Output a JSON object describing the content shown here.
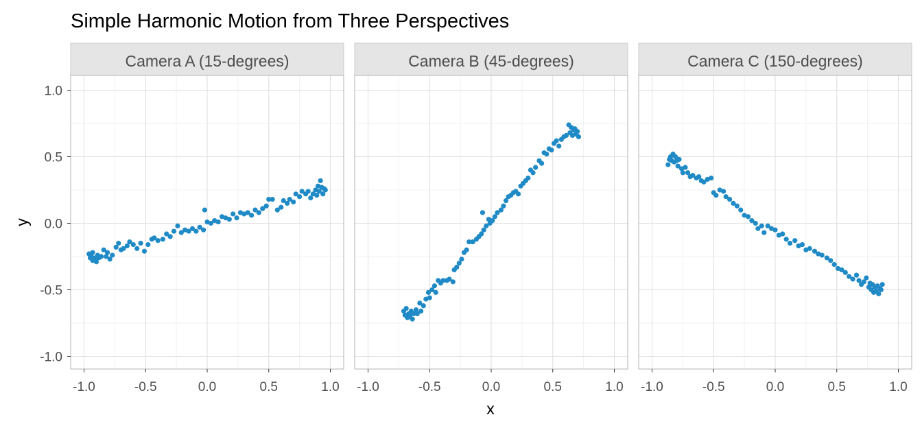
{
  "chart_data": {
    "type": "scatter",
    "title": "Simple Harmonic Motion from Three Perspectives",
    "xlabel": "x",
    "ylabel": "y",
    "xlim": [
      -1.0,
      1.0
    ],
    "ylim": [
      -1.0,
      1.0
    ],
    "x_ticks": [
      "-1.0",
      "-0.5",
      "0.0",
      "0.5",
      "1.0"
    ],
    "y_ticks": [
      "-1.0",
      "-0.5",
      "0.0",
      "0.5",
      "1.0"
    ],
    "grid": true,
    "point_color": "#1f8ac6",
    "panels": [
      {
        "label": "Camera A (15-degrees)",
        "points": [
          [
            -0.96,
            -0.23
          ],
          [
            -0.95,
            -0.26
          ],
          [
            -0.94,
            -0.25
          ],
          [
            -0.93,
            -0.22
          ],
          [
            -0.93,
            -0.28
          ],
          [
            -0.91,
            -0.26
          ],
          [
            -0.9,
            -0.29
          ],
          [
            -0.89,
            -0.24
          ],
          [
            -0.88,
            -0.26
          ],
          [
            -0.86,
            -0.25
          ],
          [
            -0.84,
            -0.2
          ],
          [
            -0.82,
            -0.25
          ],
          [
            -0.81,
            -0.22
          ],
          [
            -0.79,
            -0.27
          ],
          [
            -0.77,
            -0.24
          ],
          [
            -0.74,
            -0.18
          ],
          [
            -0.72,
            -0.15
          ],
          [
            -0.7,
            -0.2
          ],
          [
            -0.68,
            -0.19
          ],
          [
            -0.65,
            -0.17
          ],
          [
            -0.63,
            -0.14
          ],
          [
            -0.6,
            -0.16
          ],
          [
            -0.57,
            -0.19
          ],
          [
            -0.54,
            -0.15
          ],
          [
            -0.51,
            -0.21
          ],
          [
            -0.48,
            -0.16
          ],
          [
            -0.45,
            -0.12
          ],
          [
            -0.43,
            -0.11
          ],
          [
            -0.4,
            -0.13
          ],
          [
            -0.36,
            -0.12
          ],
          [
            -0.33,
            -0.08
          ],
          [
            -0.3,
            -0.1
          ],
          [
            -0.27,
            -0.06
          ],
          [
            -0.24,
            -0.02
          ],
          [
            -0.21,
            -0.07
          ],
          [
            -0.18,
            -0.05
          ],
          [
            -0.15,
            -0.06
          ],
          [
            -0.12,
            -0.04
          ],
          [
            -0.09,
            -0.06
          ],
          [
            -0.06,
            -0.03
          ],
          [
            -0.03,
            -0.05
          ],
          [
            -0.02,
            0.1
          ],
          [
            0.0,
            0.01
          ],
          [
            0.03,
            0.0
          ],
          [
            0.06,
            0.02
          ],
          [
            0.09,
            0.01
          ],
          [
            0.12,
            0.05
          ],
          [
            0.15,
            0.04
          ],
          [
            0.18,
            0.03
          ],
          [
            0.21,
            0.07
          ],
          [
            0.24,
            0.04
          ],
          [
            0.27,
            0.08
          ],
          [
            0.3,
            0.07
          ],
          [
            0.33,
            0.08
          ],
          [
            0.36,
            0.06
          ],
          [
            0.39,
            0.1
          ],
          [
            0.42,
            0.08
          ],
          [
            0.45,
            0.11
          ],
          [
            0.48,
            0.13
          ],
          [
            0.5,
            0.18
          ],
          [
            0.53,
            0.18
          ],
          [
            0.57,
            0.1
          ],
          [
            0.6,
            0.12
          ],
          [
            0.62,
            0.17
          ],
          [
            0.65,
            0.15
          ],
          [
            0.67,
            0.18
          ],
          [
            0.7,
            0.16
          ],
          [
            0.72,
            0.22
          ],
          [
            0.75,
            0.2
          ],
          [
            0.77,
            0.24
          ],
          [
            0.8,
            0.22
          ],
          [
            0.82,
            0.24
          ],
          [
            0.84,
            0.19
          ],
          [
            0.86,
            0.22
          ],
          [
            0.88,
            0.25
          ],
          [
            0.89,
            0.21
          ],
          [
            0.9,
            0.28
          ],
          [
            0.91,
            0.24
          ],
          [
            0.92,
            0.32
          ],
          [
            0.93,
            0.27
          ],
          [
            0.94,
            0.22
          ],
          [
            0.95,
            0.26
          ],
          [
            0.96,
            0.25
          ]
        ]
      },
      {
        "label": "Camera B (45-degrees)",
        "points": [
          [
            -0.71,
            -0.66
          ],
          [
            -0.7,
            -0.69
          ],
          [
            -0.69,
            -0.64
          ],
          [
            -0.68,
            -0.71
          ],
          [
            -0.67,
            -0.68
          ],
          [
            -0.66,
            -0.7
          ],
          [
            -0.65,
            -0.66
          ],
          [
            -0.64,
            -0.72
          ],
          [
            -0.63,
            -0.68
          ],
          [
            -0.61,
            -0.65
          ],
          [
            -0.6,
            -0.68
          ],
          [
            -0.58,
            -0.6
          ],
          [
            -0.57,
            -0.66
          ],
          [
            -0.55,
            -0.62
          ],
          [
            -0.53,
            -0.57
          ],
          [
            -0.51,
            -0.52
          ],
          [
            -0.5,
            -0.56
          ],
          [
            -0.48,
            -0.5
          ],
          [
            -0.46,
            -0.47
          ],
          [
            -0.45,
            -0.52
          ],
          [
            -0.43,
            -0.43
          ],
          [
            -0.41,
            -0.45
          ],
          [
            -0.39,
            -0.43
          ],
          [
            -0.36,
            -0.43
          ],
          [
            -0.34,
            -0.42
          ],
          [
            -0.31,
            -0.44
          ],
          [
            -0.3,
            -0.35
          ],
          [
            -0.28,
            -0.33
          ],
          [
            -0.26,
            -0.3
          ],
          [
            -0.24,
            -0.27
          ],
          [
            -0.22,
            -0.22
          ],
          [
            -0.2,
            -0.2
          ],
          [
            -0.18,
            -0.14
          ],
          [
            -0.15,
            -0.14
          ],
          [
            -0.12,
            -0.12
          ],
          [
            -0.1,
            -0.1
          ],
          [
            -0.08,
            -0.08
          ],
          [
            -0.06,
            -0.05
          ],
          [
            -0.04,
            -0.02
          ],
          [
            -0.02,
            0.03
          ],
          [
            -0.01,
            0.0
          ],
          [
            -0.07,
            0.08
          ],
          [
            0.01,
            0.02
          ],
          [
            0.03,
            0.05
          ],
          [
            0.05,
            0.08
          ],
          [
            0.08,
            0.1
          ],
          [
            0.1,
            0.13
          ],
          [
            0.12,
            0.17
          ],
          [
            0.14,
            0.2
          ],
          [
            0.16,
            0.21
          ],
          [
            0.18,
            0.23
          ],
          [
            0.2,
            0.24
          ],
          [
            0.22,
            0.22
          ],
          [
            0.24,
            0.28
          ],
          [
            0.26,
            0.3
          ],
          [
            0.28,
            0.32
          ],
          [
            0.3,
            0.34
          ],
          [
            0.32,
            0.4
          ],
          [
            0.34,
            0.38
          ],
          [
            0.36,
            0.42
          ],
          [
            0.39,
            0.47
          ],
          [
            0.41,
            0.45
          ],
          [
            0.43,
            0.53
          ],
          [
            0.45,
            0.52
          ],
          [
            0.47,
            0.56
          ],
          [
            0.49,
            0.55
          ],
          [
            0.51,
            0.6
          ],
          [
            0.53,
            0.62
          ],
          [
            0.55,
            0.58
          ],
          [
            0.57,
            0.63
          ],
          [
            0.59,
            0.65
          ],
          [
            0.61,
            0.66
          ],
          [
            0.63,
            0.74
          ],
          [
            0.64,
            0.68
          ],
          [
            0.65,
            0.72
          ],
          [
            0.66,
            0.66
          ],
          [
            0.67,
            0.7
          ],
          [
            0.68,
            0.71
          ],
          [
            0.69,
            0.67
          ],
          [
            0.7,
            0.69
          ],
          [
            0.71,
            0.65
          ]
        ]
      },
      {
        "label": "Camera C (150-degrees)",
        "points": [
          [
            -0.87,
            0.44
          ],
          [
            -0.86,
            0.48
          ],
          [
            -0.85,
            0.5
          ],
          [
            -0.84,
            0.47
          ],
          [
            -0.83,
            0.52
          ],
          [
            -0.82,
            0.46
          ],
          [
            -0.81,
            0.5
          ],
          [
            -0.8,
            0.47
          ],
          [
            -0.79,
            0.43
          ],
          [
            -0.78,
            0.48
          ],
          [
            -0.76,
            0.41
          ],
          [
            -0.75,
            0.38
          ],
          [
            -0.73,
            0.42
          ],
          [
            -0.71,
            0.38
          ],
          [
            -0.69,
            0.35
          ],
          [
            -0.67,
            0.36
          ],
          [
            -0.64,
            0.34
          ],
          [
            -0.62,
            0.35
          ],
          [
            -0.6,
            0.32
          ],
          [
            -0.58,
            0.31
          ],
          [
            -0.55,
            0.33
          ],
          [
            -0.52,
            0.34
          ],
          [
            -0.5,
            0.23
          ],
          [
            -0.48,
            0.21
          ],
          [
            -0.45,
            0.25
          ],
          [
            -0.42,
            0.24
          ],
          [
            -0.4,
            0.2
          ],
          [
            -0.37,
            0.18
          ],
          [
            -0.34,
            0.15
          ],
          [
            -0.31,
            0.13
          ],
          [
            -0.28,
            0.1
          ],
          [
            -0.25,
            0.06
          ],
          [
            -0.22,
            0.05
          ],
          [
            -0.19,
            0.02
          ],
          [
            -0.16,
            0.0
          ],
          [
            -0.14,
            -0.04
          ],
          [
            -0.11,
            -0.02
          ],
          [
            -0.09,
            -0.07
          ],
          [
            -0.06,
            -0.02
          ],
          [
            -0.03,
            -0.04
          ],
          [
            0.0,
            -0.05
          ],
          [
            0.03,
            -0.09
          ],
          [
            0.06,
            -0.08
          ],
          [
            0.09,
            -0.12
          ],
          [
            0.12,
            -0.15
          ],
          [
            0.16,
            -0.13
          ],
          [
            0.19,
            -0.17
          ],
          [
            0.22,
            -0.16
          ],
          [
            0.25,
            -0.2
          ],
          [
            0.28,
            -0.19
          ],
          [
            0.32,
            -0.21
          ],
          [
            0.35,
            -0.23
          ],
          [
            0.38,
            -0.24
          ],
          [
            0.42,
            -0.26
          ],
          [
            0.45,
            -0.28
          ],
          [
            0.48,
            -0.31
          ],
          [
            0.51,
            -0.34
          ],
          [
            0.54,
            -0.35
          ],
          [
            0.57,
            -0.37
          ],
          [
            0.6,
            -0.4
          ],
          [
            0.63,
            -0.42
          ],
          [
            0.66,
            -0.39
          ],
          [
            0.68,
            -0.43
          ],
          [
            0.7,
            -0.46
          ],
          [
            0.72,
            -0.44
          ],
          [
            0.74,
            -0.41
          ],
          [
            0.76,
            -0.48
          ],
          [
            0.77,
            -0.45
          ],
          [
            0.78,
            -0.5
          ],
          [
            0.79,
            -0.46
          ],
          [
            0.8,
            -0.52
          ],
          [
            0.81,
            -0.48
          ],
          [
            0.82,
            -0.51
          ],
          [
            0.83,
            -0.47
          ],
          [
            0.84,
            -0.53
          ],
          [
            0.85,
            -0.49
          ],
          [
            0.86,
            -0.5
          ],
          [
            0.87,
            -0.46
          ]
        ]
      }
    ]
  }
}
